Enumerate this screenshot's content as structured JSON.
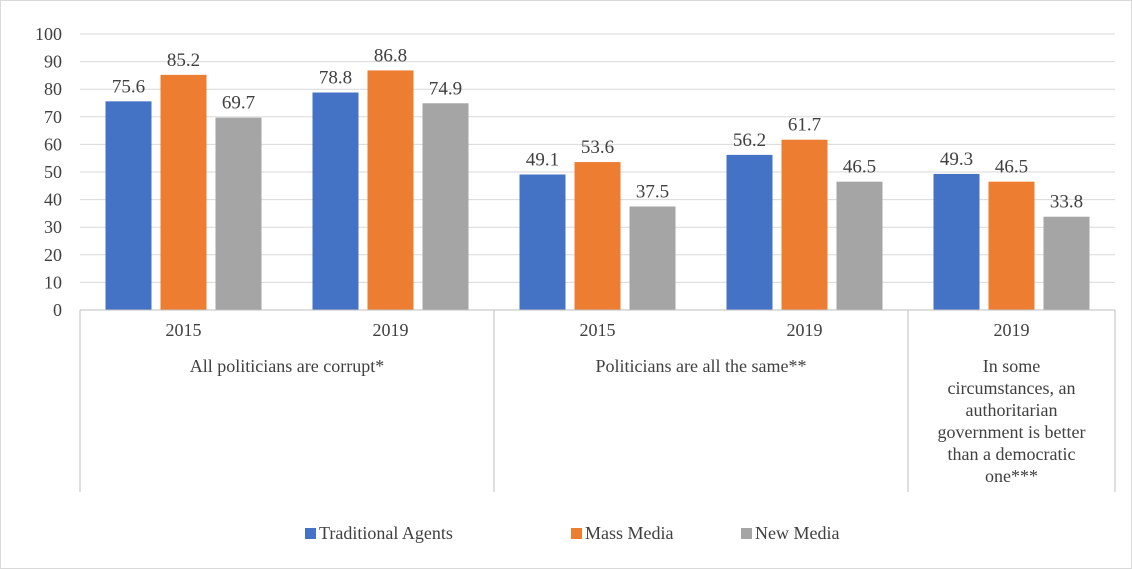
{
  "chart_data": {
    "type": "bar",
    "ylim": [
      0,
      100
    ],
    "y_ticks": [
      0,
      10,
      20,
      30,
      40,
      50,
      60,
      70,
      80,
      90,
      100
    ],
    "grid": true,
    "legend_position": "bottom",
    "colors": {
      "Traditional Agents": "#4472c4",
      "Mass Media": "#ed7d31",
      "New Media": "#a5a5a5"
    },
    "series_names": [
      "Traditional Agents",
      "Mass Media",
      "New Media"
    ],
    "groups": [
      {
        "label_lines": [
          "All politicians are corrupt*"
        ],
        "categories": [
          {
            "year": "2015",
            "values": [
              75.6,
              85.2,
              69.7
            ]
          },
          {
            "year": "2019",
            "values": [
              78.8,
              86.8,
              74.9
            ]
          }
        ]
      },
      {
        "label_lines": [
          "Politicians are all the same**"
        ],
        "categories": [
          {
            "year": "2015",
            "values": [
              49.1,
              53.6,
              37.5
            ]
          },
          {
            "year": "2019",
            "values": [
              56.2,
              61.7,
              46.5
            ]
          }
        ]
      },
      {
        "label_lines": [
          "In some",
          "circumstances, an",
          "authoritarian",
          "government is better",
          "than a democratic",
          "one***"
        ],
        "categories": [
          {
            "year": "2019",
            "values": [
              49.3,
              46.5,
              33.8
            ]
          }
        ]
      }
    ]
  }
}
